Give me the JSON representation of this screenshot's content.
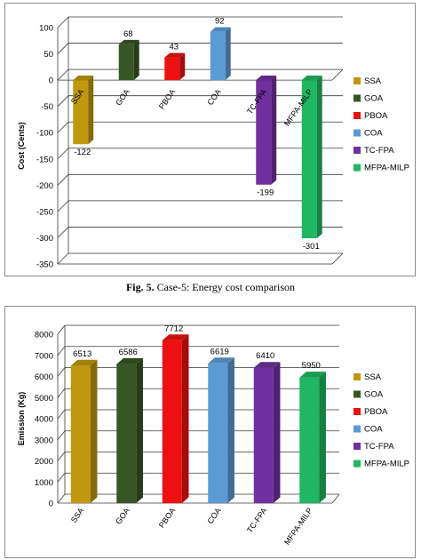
{
  "figure_caption": {
    "label": "Fig. 5.",
    "text": " Case-5: Energy cost comparison"
  },
  "legend_colors": {
    "SSA": "#C0980E",
    "GOA": "#375623",
    "PBOA": "#EE1010",
    "COA": "#5B9BD5",
    "TC-FPA": "#7030A0",
    "MFPA-MILP": "#1FB761"
  },
  "chart_data": [
    {
      "type": "bar",
      "title": "",
      "xlabel": "",
      "ylabel": "Cost (Cents)",
      "ylim": [
        -350,
        100
      ],
      "yticks": [
        100,
        50,
        0,
        -50,
        -100,
        -150,
        -200,
        -250,
        -300,
        -350
      ],
      "grid": true,
      "legend_position": "right",
      "categories": [
        "SSA",
        "GOA",
        "PBOA",
        "COA",
        "TC-FPA",
        "MFPA-MILP"
      ],
      "values": [
        -122,
        68,
        43,
        92,
        -199,
        -301
      ],
      "data_labels": [
        "-122",
        "68",
        "43",
        "92",
        "-199",
        "-301"
      ],
      "legend": [
        "SSA",
        "GOA",
        "PBOA",
        "COA",
        "TC-FPA",
        "MFPA-MILP"
      ]
    },
    {
      "type": "bar",
      "title": "",
      "xlabel": "",
      "ylabel": "Emission (Kg)",
      "ylim": [
        0,
        8000
      ],
      "yticks": [
        8000,
        7000,
        6000,
        5000,
        4000,
        3000,
        2000,
        1000,
        0
      ],
      "grid": true,
      "legend_position": "right",
      "categories": [
        "SSA",
        "GOA",
        "PBOA",
        "COA",
        "TC-FPA",
        "MFPA-MILP"
      ],
      "values": [
        6513,
        6586,
        7712,
        6619,
        6410,
        5950
      ],
      "data_labels": [
        "6513",
        "6586",
        "7712",
        "6619",
        "6410",
        "5950"
      ],
      "legend": [
        "SSA",
        "GOA",
        "PBOA",
        "COA",
        "TC-FPA",
        "MFPA-MILP"
      ]
    }
  ]
}
